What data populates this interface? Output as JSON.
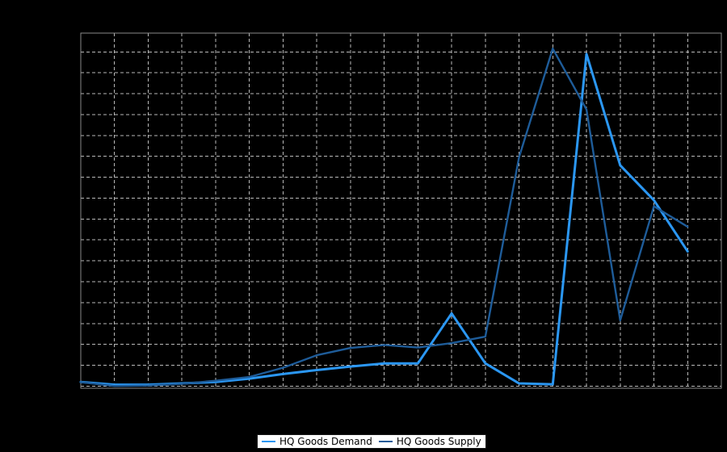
{
  "canvas": {
    "background": "#000000"
  },
  "plot_style": {
    "frame_color": "#8a8a8a",
    "grid_color": "#b9b9b9",
    "grid_dash": "4 3",
    "background": "#000000"
  },
  "legend": {
    "background": "#ffffff",
    "border_color": "#141414",
    "text_color": "#000000",
    "items": [
      {
        "label": "HQ Goods Demand",
        "color": "#2b97f3"
      },
      {
        "label": "HQ Goods Supply",
        "color": "#1e5c99"
      }
    ]
  },
  "chart_data": {
    "type": "line",
    "x": [
      0,
      1,
      2,
      3,
      4,
      5,
      6,
      7,
      8,
      9,
      10,
      11,
      12,
      13,
      14,
      15,
      16,
      17,
      18
    ],
    "series": [
      {
        "name": "HQ Goods Demand",
        "color": "#2b97f3",
        "values": [
          0.2,
          0.07,
          0.07,
          0.13,
          0.2,
          0.36,
          0.58,
          0.77,
          0.94,
          1.09,
          1.09,
          3.48,
          1.09,
          0.13,
          0.09,
          15.9,
          10.57,
          8.9,
          6.45
        ]
      },
      {
        "name": "HQ Goods Supply",
        "color": "#1e5c99",
        "values": [
          0.19,
          0.01,
          0.03,
          0.11,
          0.26,
          0.44,
          0.88,
          1.48,
          1.83,
          1.97,
          1.85,
          2.06,
          2.37,
          10.96,
          16.16,
          13.24,
          3.15,
          8.61,
          7.63
        ]
      }
    ],
    "xlabel": "",
    "ylabel": "",
    "xlim": [
      0,
      19
    ],
    "ylim": [
      -0.1,
      16.9
    ],
    "y_gridline_values": [
      0,
      1,
      2,
      3,
      4,
      5,
      6,
      7,
      8,
      9,
      10,
      11,
      12,
      13,
      14,
      15,
      16
    ],
    "x_gridline_values": [
      1,
      2,
      3,
      4,
      5,
      6,
      7,
      8,
      9,
      10,
      11,
      12,
      13,
      14,
      15,
      16,
      17,
      18
    ],
    "grid": true,
    "tick_labels_visible": false,
    "legend_position": "bottom-center"
  }
}
